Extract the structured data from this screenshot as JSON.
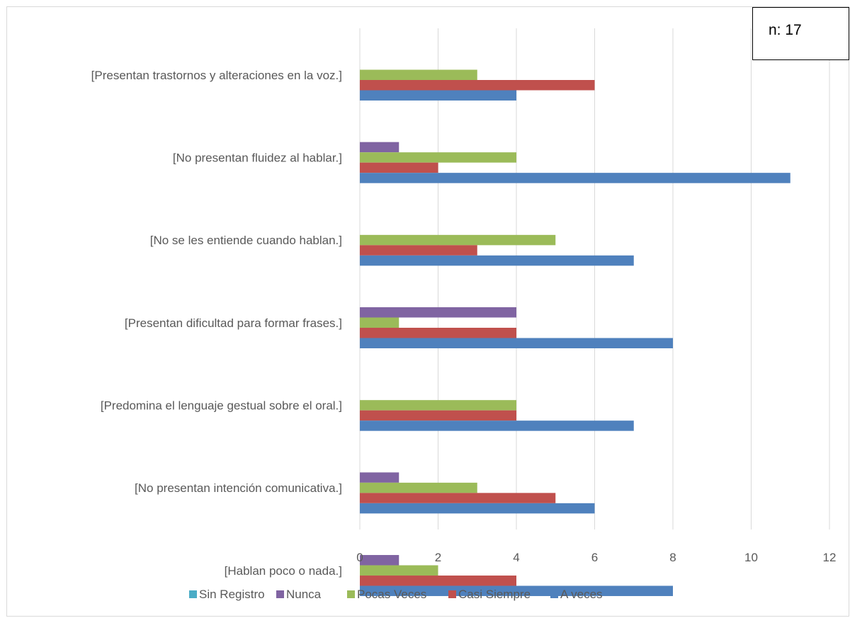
{
  "annotation": {
    "n_label": "n: 17"
  },
  "colors": {
    "Sin Registro": "#4bacc6",
    "Nunca": "#8064a2",
    "Pocas  Veces": "#9bbb59",
    "Casi Siempre": "#c0504d",
    "A veces": "#4f81bd",
    "grid": "#d9d9d9",
    "text": "#595959"
  },
  "chart_data": {
    "type": "bar",
    "orientation": "horizontal",
    "categories": [
      "[Presentan trastornos y alteraciones en la voz.]",
      "[No presentan fluidez al hablar.]",
      "[No se les entiende cuando hablan.]",
      "[Presentan dificultad para formar frases.]",
      "[Predomina el lenguaje gestual sobre el oral.]",
      "[No presentan intención comunicativa.]",
      "[Hablan poco o nada.]"
    ],
    "series": [
      {
        "name": "Sin Registro",
        "values": [
          0,
          0,
          0,
          0,
          0,
          0,
          0
        ]
      },
      {
        "name": "Nunca",
        "values": [
          0,
          1,
          0,
          4,
          0,
          1,
          1
        ]
      },
      {
        "name": "Pocas  Veces",
        "values": [
          3,
          4,
          5,
          1,
          4,
          3,
          2
        ]
      },
      {
        "name": "Casi Siempre",
        "values": [
          6,
          2,
          3,
          4,
          4,
          5,
          4
        ]
      },
      {
        "name": "A veces",
        "values": [
          4,
          11,
          7,
          8,
          7,
          6,
          8
        ]
      }
    ],
    "x_ticks": [
      "0",
      "2",
      "4",
      "6",
      "8",
      "10",
      "12"
    ],
    "xlim": [
      0,
      12
    ],
    "grid": true,
    "legend_position": "bottom"
  }
}
